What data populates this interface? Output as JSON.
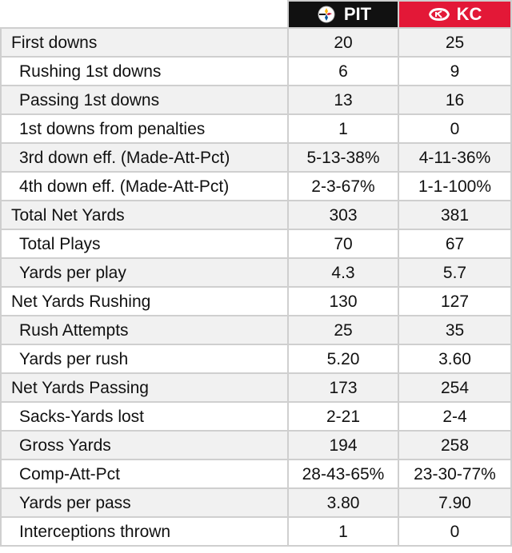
{
  "teams": {
    "away": {
      "abbr": "PIT",
      "icon": "steelers-logo-icon",
      "color": "#111111"
    },
    "home": {
      "abbr": "KC",
      "icon": "chiefs-logo-icon",
      "color": "#e31837"
    }
  },
  "rows": [
    {
      "label": "First downs",
      "indent": false,
      "pit": "20",
      "kc": "25"
    },
    {
      "label": "Rushing 1st downs",
      "indent": true,
      "pit": "6",
      "kc": "9"
    },
    {
      "label": "Passing 1st downs",
      "indent": true,
      "pit": "13",
      "kc": "16"
    },
    {
      "label": "1st downs from penalties",
      "indent": true,
      "pit": "1",
      "kc": "0"
    },
    {
      "label": "3rd down eff. (Made-Att-Pct)",
      "indent": true,
      "pit": "5-13-38%",
      "kc": "4-11-36%"
    },
    {
      "label": "4th down eff. (Made-Att-Pct)",
      "indent": true,
      "pit": "2-3-67%",
      "kc": "1-1-100%"
    },
    {
      "label": "Total Net Yards",
      "indent": false,
      "pit": "303",
      "kc": "381"
    },
    {
      "label": "Total Plays",
      "indent": true,
      "pit": "70",
      "kc": "67"
    },
    {
      "label": "Yards per play",
      "indent": true,
      "pit": "4.3",
      "kc": "5.7"
    },
    {
      "label": "Net Yards Rushing",
      "indent": false,
      "pit": "130",
      "kc": "127"
    },
    {
      "label": "Rush Attempts",
      "indent": true,
      "pit": "25",
      "kc": "35"
    },
    {
      "label": "Yards per rush",
      "indent": true,
      "pit": "5.20",
      "kc": "3.60"
    },
    {
      "label": "Net Yards Passing",
      "indent": false,
      "pit": "173",
      "kc": "254"
    },
    {
      "label": "Sacks-Yards lost",
      "indent": true,
      "pit": "2-21",
      "kc": "2-4"
    },
    {
      "label": "Gross Yards",
      "indent": true,
      "pit": "194",
      "kc": "258"
    },
    {
      "label": "Comp-Att-Pct",
      "indent": true,
      "pit": "28-43-65%",
      "kc": "23-30-77%"
    },
    {
      "label": "Yards per pass",
      "indent": true,
      "pit": "3.80",
      "kc": "7.90"
    },
    {
      "label": "Interceptions thrown",
      "indent": true,
      "pit": "1",
      "kc": "0"
    }
  ]
}
